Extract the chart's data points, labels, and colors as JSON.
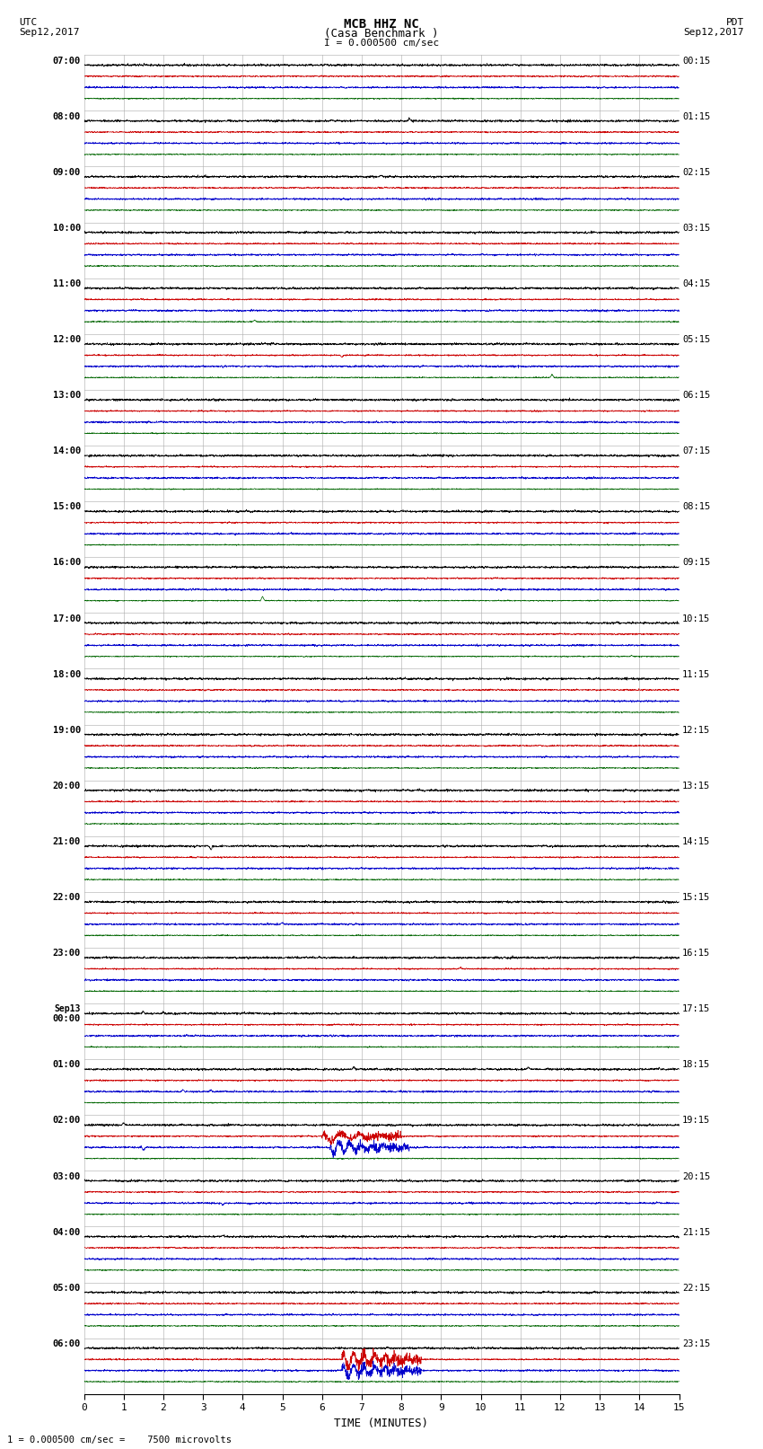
{
  "title_line1": "MCB HHZ NC",
  "title_line2": "(Casa Benchmark )",
  "title_line3": "I = 0.000500 cm/sec",
  "left_header_line1": "UTC",
  "left_header_line2": "Sep12,2017",
  "right_header_line1": "PDT",
  "right_header_line2": "Sep12,2017",
  "bottom_label": "TIME (MINUTES)",
  "bottom_note": "1 = 0.000500 cm/sec =    7500 microvolts",
  "background_color": "#ffffff",
  "trace_colors": [
    "#000000",
    "#cc0000",
    "#0000cc",
    "#006600"
  ],
  "left_times": [
    "07:00",
    "08:00",
    "09:00",
    "10:00",
    "11:00",
    "12:00",
    "13:00",
    "14:00",
    "15:00",
    "16:00",
    "17:00",
    "18:00",
    "19:00",
    "20:00",
    "21:00",
    "22:00",
    "23:00",
    "Sep13\n00:00",
    "01:00",
    "02:00",
    "03:00",
    "04:00",
    "05:00",
    "06:00"
  ],
  "right_times": [
    "00:15",
    "01:15",
    "02:15",
    "03:15",
    "04:15",
    "05:15",
    "06:15",
    "07:15",
    "08:15",
    "09:15",
    "10:15",
    "11:15",
    "12:15",
    "13:15",
    "14:15",
    "15:15",
    "16:15",
    "17:15",
    "18:15",
    "19:15",
    "20:15",
    "21:15",
    "22:15",
    "23:15"
  ],
  "n_rows": 24,
  "n_traces_per_row": 4,
  "x_min": 0,
  "x_max": 15,
  "x_ticks": [
    0,
    1,
    2,
    3,
    4,
    5,
    6,
    7,
    8,
    9,
    10,
    11,
    12,
    13,
    14,
    15
  ],
  "grid_color": "#aaaaaa",
  "noise_seeds": [
    100,
    200,
    300,
    400,
    500,
    600,
    700,
    800,
    900,
    1000,
    1100,
    1200,
    1300,
    1400,
    1500,
    1600,
    1700,
    1800,
    1900,
    2000,
    2100,
    2200,
    2300,
    2400,
    2500,
    2600,
    2700,
    2800,
    2900,
    3000,
    3100,
    3200,
    3300,
    3400,
    3500,
    3600,
    3700,
    3800,
    3900,
    4000,
    4100,
    4200,
    4300,
    4400,
    4500,
    4600,
    4700,
    4800,
    4900,
    5000,
    5100,
    5200,
    5300,
    5400,
    5500,
    5600,
    5700,
    5800,
    5900,
    6000,
    6100,
    6200,
    6300,
    6400,
    6500,
    6600,
    6700,
    6800,
    6900,
    7000,
    7100,
    7200,
    7300,
    7400,
    7500,
    7600,
    7700,
    7800,
    7900,
    8000,
    8100,
    8200,
    8300,
    8400,
    8500,
    8600,
    8700,
    8800,
    8900,
    9000,
    9100,
    9200,
    9300,
    9400,
    9500,
    9600,
    9700,
    9800,
    9900,
    10000
  ]
}
